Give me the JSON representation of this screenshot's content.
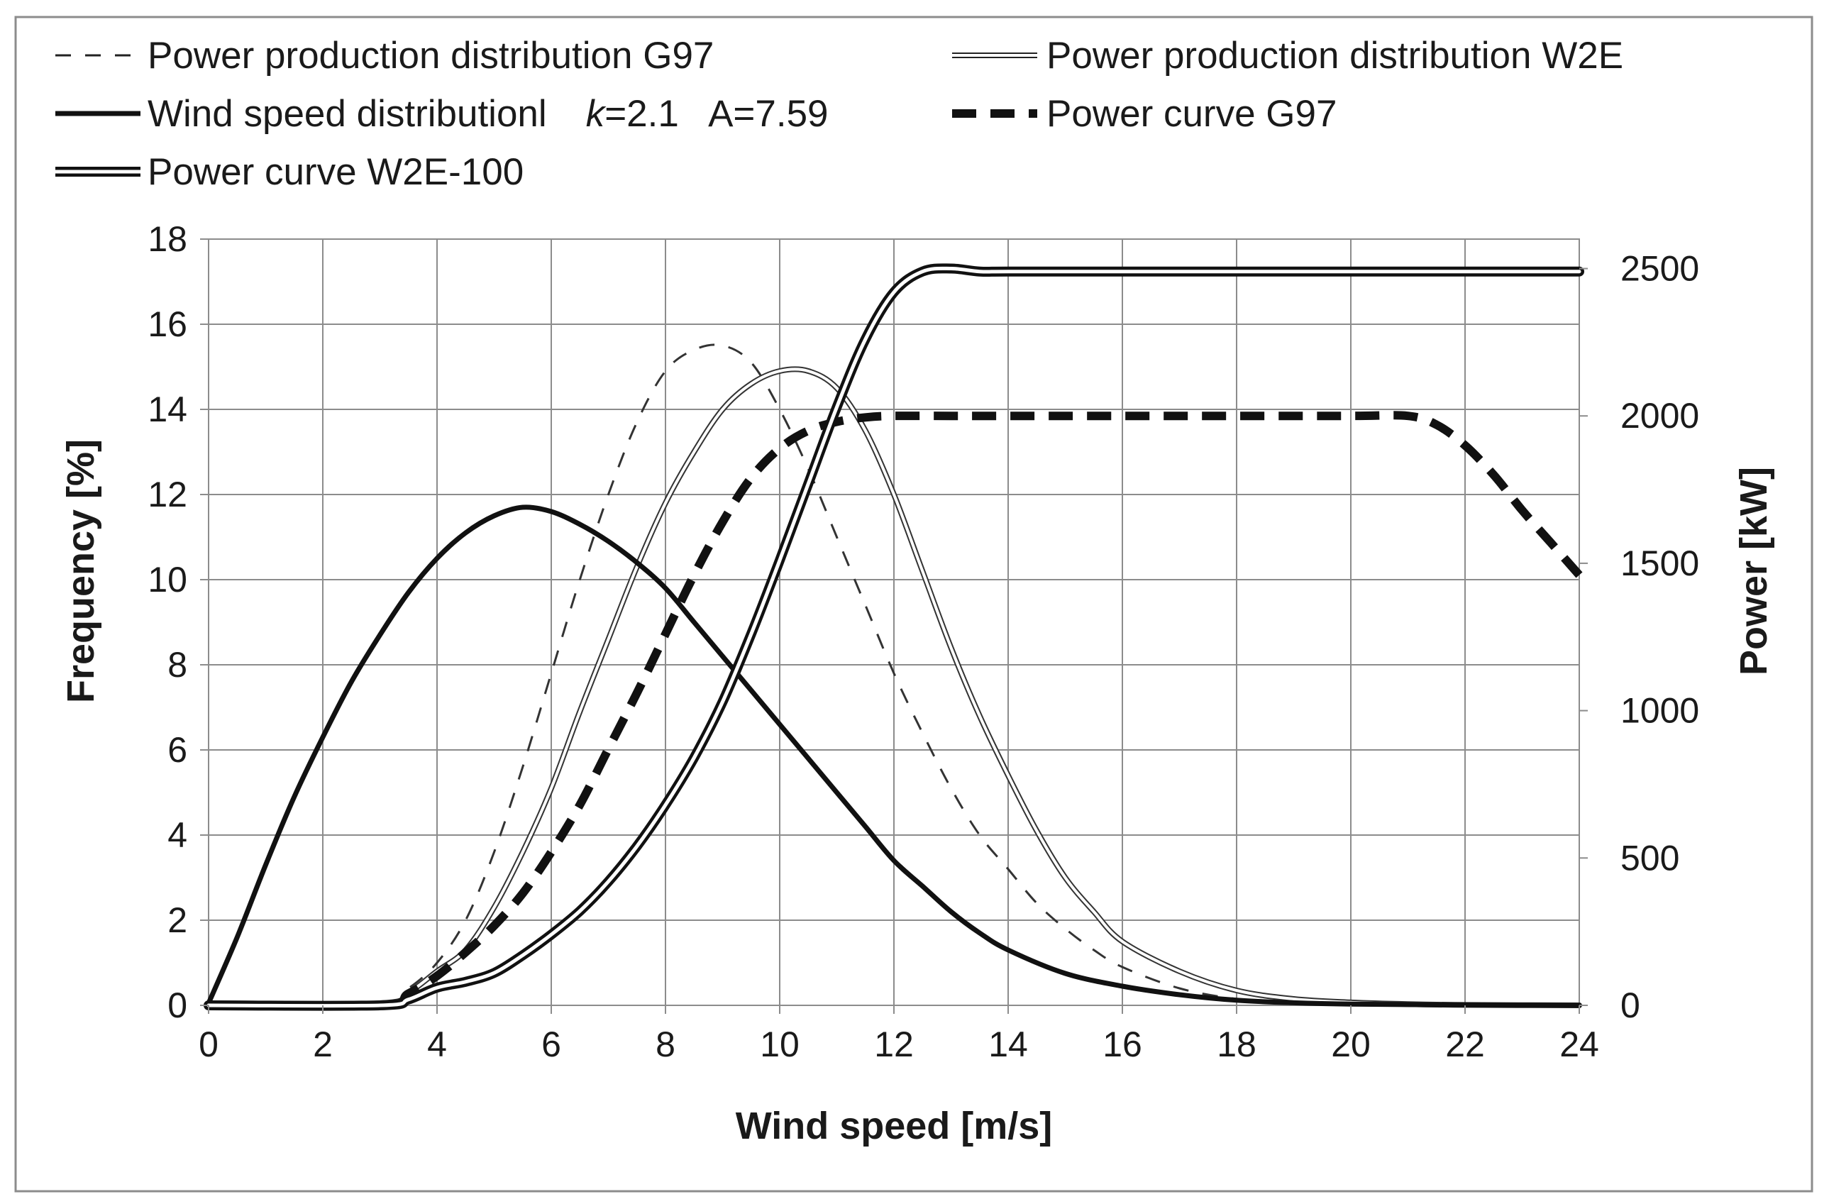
{
  "chart_data": {
    "type": "line",
    "xlabel": "Wind speed [m/s]",
    "ylabel": "Frequency [%]",
    "y2label": "Power [kW]",
    "xlim": [
      0,
      24
    ],
    "ylim": [
      0,
      18
    ],
    "y2lim": [
      0,
      2600
    ],
    "xticks": [
      "0",
      "2",
      "4",
      "6",
      "8",
      "10",
      "12",
      "14",
      "16",
      "18",
      "20",
      "22",
      "24"
    ],
    "yticks": [
      "0",
      "2",
      "4",
      "6",
      "8",
      "10",
      "12",
      "14",
      "16",
      "18"
    ],
    "y2ticks": [
      "0",
      "500",
      "1000",
      "1500",
      "2000",
      "2500"
    ],
    "grid": true,
    "legend_position": "top",
    "series": [
      {
        "name": "Power production distribution G97",
        "style": "thin-dashed",
        "axis": "left",
        "x": [
          0,
          3,
          3.5,
          4,
          4.5,
          5,
          5.5,
          6,
          6.5,
          7,
          7.5,
          8,
          8.5,
          9,
          9.5,
          10,
          10.5,
          11,
          11.5,
          12,
          12.5,
          13,
          13.5,
          14,
          14.5,
          15,
          15.5,
          16,
          17,
          18,
          19,
          20,
          21,
          22,
          24
        ],
        "values": [
          0.05,
          0.05,
          0.4,
          1.0,
          2.0,
          3.6,
          5.6,
          7.8,
          10.0,
          12.0,
          13.7,
          14.9,
          15.4,
          15.5,
          15.1,
          14.0,
          12.6,
          11.0,
          9.4,
          7.8,
          6.4,
          5.1,
          4.0,
          3.2,
          2.4,
          1.8,
          1.3,
          0.9,
          0.4,
          0.15,
          0.05,
          0.02,
          0.01,
          0.0,
          0.0
        ]
      },
      {
        "name": "Power production distribution W2E",
        "style": "double-thin",
        "axis": "left",
        "x": [
          0,
          3,
          3.5,
          4,
          4.5,
          5,
          5.5,
          6,
          6.5,
          7,
          7.5,
          8,
          8.5,
          9,
          9.5,
          10,
          10.5,
          11,
          11.5,
          12,
          12.5,
          13,
          13.5,
          14,
          14.5,
          15,
          15.5,
          16,
          17,
          18,
          19,
          20,
          21,
          22,
          24
        ],
        "values": [
          0.05,
          0.05,
          0.3,
          0.8,
          1.3,
          2.3,
          3.6,
          5.1,
          6.9,
          8.6,
          10.3,
          11.8,
          13.0,
          14.0,
          14.6,
          14.9,
          14.9,
          14.5,
          13.5,
          12.0,
          10.2,
          8.4,
          6.8,
          5.4,
          4.1,
          3.0,
          2.2,
          1.5,
          0.8,
          0.35,
          0.15,
          0.07,
          0.03,
          0.01,
          0.0
        ]
      },
      {
        "name": "Wind speed distributionl",
        "legend_suffix": "=2.1   A=7.59",
        "legend_k": "k",
        "style": "solid",
        "axis": "left",
        "x": [
          0,
          0.5,
          1,
          1.5,
          2,
          2.5,
          3,
          3.5,
          4,
          4.5,
          5,
          5.5,
          6,
          6.5,
          7,
          7.5,
          8,
          8.5,
          9,
          9.5,
          10,
          10.5,
          11,
          11.5,
          12,
          12.5,
          13,
          13.5,
          14,
          15,
          16,
          17,
          18,
          19,
          20,
          22,
          24
        ],
        "values": [
          0.05,
          1.6,
          3.3,
          4.9,
          6.3,
          7.6,
          8.7,
          9.7,
          10.5,
          11.1,
          11.5,
          11.7,
          11.6,
          11.3,
          10.9,
          10.4,
          9.8,
          9.0,
          8.2,
          7.4,
          6.6,
          5.8,
          5.0,
          4.2,
          3.4,
          2.8,
          2.2,
          1.7,
          1.3,
          0.75,
          0.45,
          0.25,
          0.12,
          0.06,
          0.03,
          0.01,
          0.0
        ]
      },
      {
        "name": "Power curve G97",
        "style": "thick-dashed",
        "axis": "right",
        "x": [
          0,
          3,
          3.5,
          4,
          4.5,
          5,
          5.5,
          6,
          6.5,
          7,
          7.5,
          8,
          8.5,
          9,
          9.5,
          10,
          10.5,
          11,
          11.5,
          12,
          13,
          14,
          16,
          18,
          20,
          21,
          21.5,
          22,
          22.5,
          23,
          23.5,
          24
        ],
        "values": [
          0,
          0,
          40,
          100,
          180,
          270,
          380,
          520,
          680,
          870,
          1060,
          1260,
          1460,
          1640,
          1790,
          1890,
          1950,
          1980,
          1995,
          2000,
          2000,
          2000,
          2000,
          2000,
          2000,
          2000,
          1970,
          1900,
          1800,
          1680,
          1570,
          1460
        ]
      },
      {
        "name": "Power curve W2E-100",
        "style": "double-thick",
        "axis": "right",
        "x": [
          0,
          3,
          3.5,
          4,
          4.5,
          5,
          5.5,
          6,
          6.5,
          7,
          7.5,
          8,
          8.5,
          9,
          9.5,
          10,
          10.5,
          11,
          11.5,
          12,
          12.5,
          13,
          13.5,
          14,
          16,
          18,
          20,
          22,
          24
        ],
        "values": [
          0,
          0,
          20,
          60,
          80,
          110,
          170,
          240,
          320,
          420,
          540,
          680,
          840,
          1030,
          1260,
          1510,
          1770,
          2030,
          2260,
          2420,
          2490,
          2500,
          2490,
          2490,
          2490,
          2490,
          2490,
          2490,
          2490
        ]
      }
    ]
  }
}
